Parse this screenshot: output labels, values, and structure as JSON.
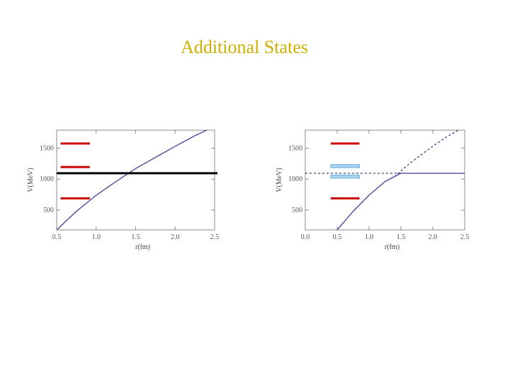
{
  "slide": {
    "title": "Additional States"
  },
  "chart_data": [
    {
      "type": "line",
      "xlabel": "r(fm)",
      "ylabel": "V(MeV)",
      "xlim": [
        0.5,
        2.5
      ],
      "ylim": [
        180,
        1790
      ],
      "xticks": [
        "0.5",
        "1.0",
        "1.5",
        "2.0",
        "2.5"
      ],
      "xtick_values": [
        0.5,
        1.0,
        1.5,
        2.0,
        2.5
      ],
      "yticks": [
        "500",
        "1000",
        "1500"
      ],
      "ytick_values": [
        500,
        1000,
        1500
      ],
      "series": [
        {
          "x": [
            0.5,
            0.75,
            1.0,
            1.25,
            1.5,
            1.75,
            2.0,
            2.25,
            2.4
          ],
          "y": [
            180,
            480,
            740,
            960,
            1170,
            1350,
            1530,
            1700,
            1790
          ],
          "color": "#4a4a9a",
          "style": "solid"
        }
      ],
      "threshold": {
        "y": 1095,
        "color": "#000000",
        "style": "solid"
      },
      "states": [
        {
          "y": 1575,
          "x_range": [
            0.55,
            0.92
          ],
          "color": "#cc0000"
        },
        {
          "y": 1195,
          "x_range": [
            0.55,
            0.92
          ],
          "color": "#cc0000"
        },
        {
          "y": 690,
          "x_range": [
            0.55,
            0.92
          ],
          "color": "#cc0000"
        }
      ]
    },
    {
      "type": "line",
      "xlabel": "r(fm)",
      "ylabel": "V(MeV)",
      "xlim": [
        0.0,
        2.5
      ],
      "ylim": [
        180,
        1790
      ],
      "xticks": [
        "0.0",
        "0.5",
        "1.0",
        "1.5",
        "2.0",
        "2.5"
      ],
      "xtick_values": [
        0.0,
        0.5,
        1.0,
        1.5,
        2.0,
        2.5
      ],
      "yticks": [
        "500",
        "1000",
        "1500"
      ],
      "ytick_values": [
        500,
        1000,
        1500
      ],
      "series": [
        {
          "x": [
            0.5,
            0.75,
            1.0,
            1.25,
            1.5
          ],
          "y": [
            180,
            480,
            740,
            960,
            1095
          ],
          "color": "#4a4a9a",
          "style": "solid"
        },
        {
          "x": [
            1.5,
            2.5
          ],
          "y": [
            1095,
            1095
          ],
          "color": "#4a4a9a",
          "style": "solid"
        },
        {
          "x": [
            1.4,
            1.6,
            1.8,
            2.0,
            2.2,
            2.4
          ],
          "y": [
            1040,
            1220,
            1380,
            1530,
            1670,
            1790
          ],
          "color": "#4a4a9a",
          "style": "dashed"
        },
        {
          "x": [
            0.0,
            1.5
          ],
          "y": [
            1095,
            1095
          ],
          "color": "#4a4a9a",
          "style": "dashed"
        }
      ],
      "states": [
        {
          "y": 1575,
          "x_range": [
            0.4,
            0.85
          ],
          "color": "#cc0000"
        },
        {
          "y": 690,
          "x_range": [
            0.4,
            0.85
          ],
          "color": "#cc0000"
        }
      ],
      "bands": [
        {
          "y_range": [
            1185,
            1235
          ],
          "x_range": [
            0.4,
            0.85
          ],
          "color": "#a8d4f0"
        },
        {
          "y_range": [
            1015,
            1065
          ],
          "x_range": [
            0.4,
            0.85
          ],
          "color": "#a8d4f0"
        }
      ]
    }
  ]
}
